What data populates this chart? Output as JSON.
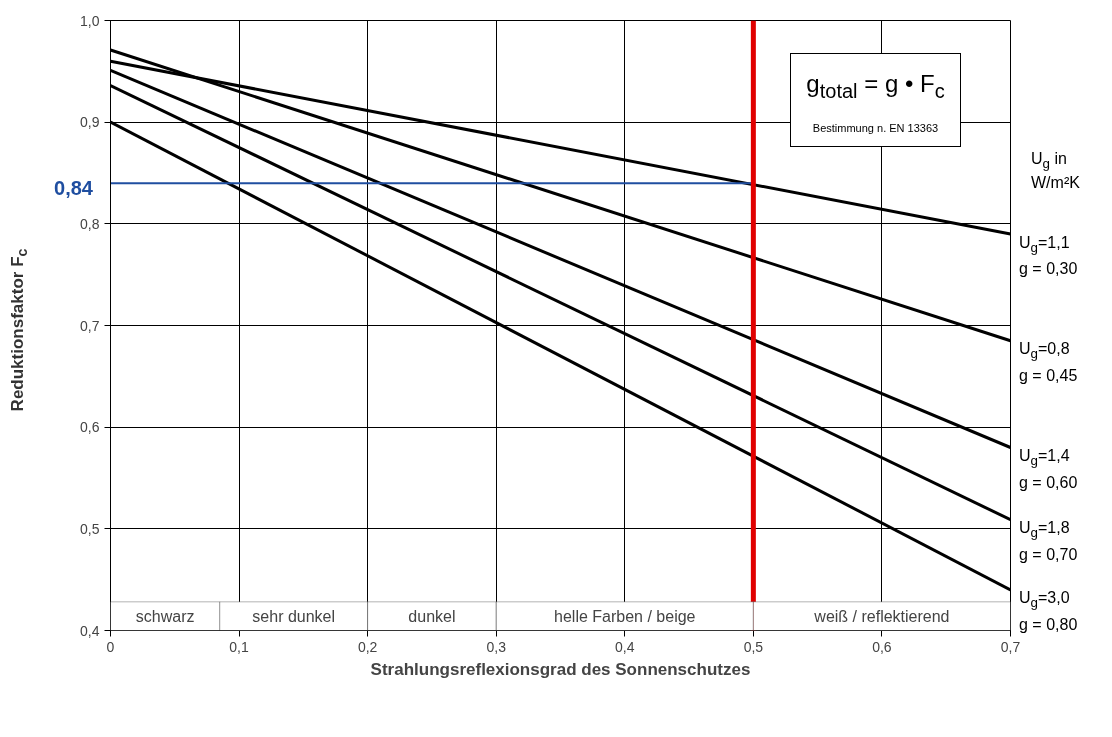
{
  "chart_data": {
    "type": "line",
    "xlabel": "Strahlungsreflexionsgrad des Sonnenschutzes",
    "ylabel": "Reduktionsfaktor F$_{c}$",
    "x": [
      0,
      0.7
    ],
    "series": [
      {
        "name": "U$_{g}$=1,1\ng = 0,30",
        "color": "#000000",
        "values": [
          0.96,
          0.79
        ]
      },
      {
        "name": "U$_{g}$=0,8\ng = 0,45",
        "color": "#000000",
        "values": [
          0.971,
          0.685
        ]
      },
      {
        "name": "U$_{g}$=1,4\ng = 0,60",
        "color": "#000000",
        "values": [
          0.951,
          0.58
        ]
      },
      {
        "name": "U$_{g}$=1,8\ng = 0,70",
        "color": "#000000",
        "values": [
          0.936,
          0.509
        ]
      },
      {
        "name": "U$_{g}$=3,0\ng = 0,80",
        "color": "#000000",
        "values": [
          0.9,
          0.44
        ]
      },
      {
        "color": "#1f4ea0",
        "x": [
          0,
          0.5
        ],
        "values": [
          0.84,
          0.84
        ]
      }
    ],
    "annotations": [
      "g$_{total}$ = g • F$_{c}$",
      "Bestimmung n. EN 13363",
      "U$_{g}$ in\nW/m²K",
      {
        "text": "0,84",
        "x": 0,
        "y": 0.84
      }
    ],
    "ref_lines": [
      {
        "axis": "x",
        "value": 0.5,
        "color": "#e00000"
      }
    ],
    "bands": [
      {
        "axis": "x",
        "from": 0,
        "to": 0.085,
        "label": "schwarz",
        "color": "#ffffff"
      },
      {
        "axis": "x",
        "from": 0.085,
        "to": 0.2,
        "label": "sehr dunkel",
        "color": "#ffffff"
      },
      {
        "axis": "x",
        "from": 0.2,
        "to": 0.3,
        "label": "dunkel",
        "color": "#ffffff"
      },
      {
        "axis": "x",
        "from": 0.3,
        "to": 0.5,
        "label": "helle Farben / beige",
        "color": "#ffffff"
      },
      {
        "axis": "x",
        "from": 0.5,
        "to": 0.7,
        "label": "weiß / reflektierend",
        "color": "#ffffff"
      }
    ],
    "xlim": [
      0,
      0.7
    ],
    "ylim": [
      0.4,
      1.0
    ],
    "xticks": [
      0,
      {
        "value": 0.1,
        "label": "0,1"
      },
      {
        "value": 0.2,
        "label": "0,2"
      },
      {
        "value": 0.3,
        "label": "0,3"
      },
      {
        "value": 0.4,
        "label": "0,4"
      },
      {
        "value": 0.5,
        "label": "0,5"
      },
      {
        "value": 0.6,
        "label": "0,6"
      },
      {
        "value": 0.7,
        "label": "0,7"
      }
    ],
    "yticks": [
      {
        "value": 0.4,
        "label": "0,4"
      },
      {
        "value": 0.5,
        "label": "0,5"
      },
      {
        "value": 0.6,
        "label": "0,6"
      },
      {
        "value": 0.7,
        "label": "0,7"
      },
      {
        "value": 0.8,
        "label": "0,8"
      },
      {
        "value": 0.9,
        "label": "0,9"
      },
      {
        "value": 1.0,
        "label": "1,0"
      }
    ],
    "grid": true,
    "marker": "none",
    "line_style": "solid"
  }
}
